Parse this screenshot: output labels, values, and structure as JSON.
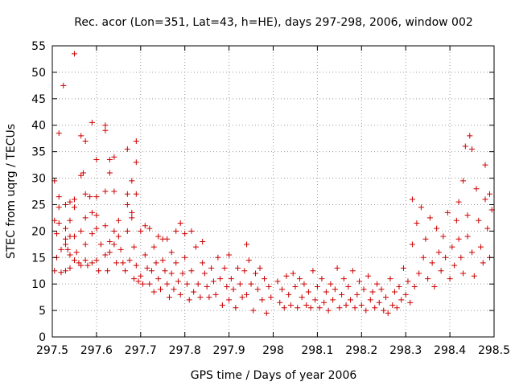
{
  "chart_data": {
    "type": "scatter",
    "title": "Rec. acor (Lon=351, Lat=43, h=HE), days 297-298, 2006, window 002",
    "xlabel": "GPS time / Days of year 2006",
    "ylabel": "STEC from uqrg / TECUs",
    "xlim": [
      297.5,
      298.5
    ],
    "ylim": [
      0,
      55
    ],
    "xticks": [
      297.5,
      297.6,
      297.7,
      297.8,
      297.9,
      298.0,
      298.1,
      298.2,
      298.3,
      298.4,
      298.5
    ],
    "xtick_labels": [
      "297.5",
      "297.6",
      "297.7",
      "297.8",
      "297.9",
      "298",
      "298.1",
      "298.2",
      "298.3",
      "298.4",
      "298.5"
    ],
    "yticks": [
      0,
      5,
      10,
      15,
      20,
      25,
      30,
      35,
      40,
      45,
      50,
      55
    ],
    "ytick_labels": [
      "0",
      "5",
      "10",
      "15",
      "20",
      "25",
      "30",
      "35",
      "40",
      "45",
      "50",
      "55"
    ],
    "grid": true,
    "marker": "plus",
    "color": "#cc0000",
    "series": [
      {
        "points": [
          [
            297.505,
            29.5
          ],
          [
            297.505,
            22
          ],
          [
            297.51,
            19.5
          ],
          [
            297.51,
            15
          ],
          [
            297.505,
            12.5
          ],
          [
            297.515,
            38.5
          ],
          [
            297.515,
            26.5
          ],
          [
            297.515,
            24.5
          ],
          [
            297.515,
            21.5
          ],
          [
            297.52,
            16.5
          ],
          [
            297.52,
            12.2
          ],
          [
            297.525,
            47.5
          ],
          [
            297.53,
            25
          ],
          [
            297.53,
            20.5
          ],
          [
            297.53,
            18.5
          ],
          [
            297.53,
            17.5
          ],
          [
            297.53,
            12.5
          ],
          [
            297.535,
            16.5
          ],
          [
            297.54,
            25.5
          ],
          [
            297.54,
            22
          ],
          [
            297.54,
            19
          ],
          [
            297.54,
            15.5
          ],
          [
            297.54,
            13
          ],
          [
            297.55,
            53.5
          ],
          [
            297.55,
            26
          ],
          [
            297.55,
            24.5
          ],
          [
            297.55,
            19
          ],
          [
            297.55,
            14.5
          ],
          [
            297.555,
            16
          ],
          [
            297.56,
            14
          ],
          [
            297.565,
            38
          ],
          [
            297.565,
            30.5
          ],
          [
            297.565,
            20
          ],
          [
            297.565,
            13.5
          ],
          [
            297.57,
            31
          ],
          [
            297.575,
            37
          ],
          [
            297.575,
            27
          ],
          [
            297.575,
            22.5
          ],
          [
            297.575,
            17.5
          ],
          [
            297.575,
            14.5
          ],
          [
            297.58,
            13.5
          ],
          [
            297.585,
            26.5
          ],
          [
            297.59,
            40.5
          ],
          [
            297.59,
            23.5
          ],
          [
            297.59,
            19.5
          ],
          [
            297.59,
            14
          ],
          [
            297.6,
            33.5
          ],
          [
            297.6,
            26.5
          ],
          [
            297.6,
            23
          ],
          [
            297.6,
            20.5
          ],
          [
            297.6,
            14.5
          ],
          [
            297.605,
            12.5
          ],
          [
            297.61,
            17.5
          ],
          [
            297.62,
            40
          ],
          [
            297.62,
            39
          ],
          [
            297.62,
            27.5
          ],
          [
            297.62,
            21
          ],
          [
            297.62,
            15.5
          ],
          [
            297.625,
            12.5
          ],
          [
            297.63,
            33.5
          ],
          [
            297.63,
            31
          ],
          [
            297.63,
            18
          ],
          [
            297.63,
            16
          ],
          [
            297.64,
            34
          ],
          [
            297.64,
            27.5
          ],
          [
            297.64,
            20
          ],
          [
            297.64,
            17.5
          ],
          [
            297.645,
            14
          ],
          [
            297.65,
            22
          ],
          [
            297.65,
            19
          ],
          [
            297.655,
            16.5
          ],
          [
            297.66,
            14
          ],
          [
            297.665,
            12.5
          ],
          [
            297.67,
            35.5
          ],
          [
            297.67,
            27
          ],
          [
            297.67,
            25
          ],
          [
            297.67,
            20
          ],
          [
            297.675,
            14.5
          ],
          [
            297.68,
            29.5
          ],
          [
            297.68,
            23.5
          ],
          [
            297.68,
            22.5
          ],
          [
            297.685,
            17
          ],
          [
            297.685,
            11
          ],
          [
            297.69,
            27
          ],
          [
            297.69,
            37
          ],
          [
            297.69,
            33
          ],
          [
            297.69,
            13.5
          ],
          [
            297.695,
            10.5
          ],
          [
            297.7,
            20
          ],
          [
            297.7,
            11.5
          ],
          [
            297.705,
            10
          ],
          [
            297.71,
            21
          ],
          [
            297.71,
            15.5
          ],
          [
            297.715,
            13
          ],
          [
            297.72,
            20.5
          ],
          [
            297.72,
            10
          ],
          [
            297.725,
            12.5
          ],
          [
            297.73,
            17
          ],
          [
            297.73,
            8.5
          ],
          [
            297.735,
            14
          ],
          [
            297.74,
            19
          ],
          [
            297.74,
            11
          ],
          [
            297.745,
            9
          ],
          [
            297.75,
            18.5
          ],
          [
            297.75,
            14.5
          ],
          [
            297.755,
            12.5
          ],
          [
            297.76,
            18.5
          ],
          [
            297.76,
            10
          ],
          [
            297.765,
            7.5
          ],
          [
            297.77,
            16
          ],
          [
            297.77,
            12
          ],
          [
            297.775,
            9
          ],
          [
            297.78,
            20
          ],
          [
            297.78,
            14
          ],
          [
            297.785,
            10.5
          ],
          [
            297.79,
            21.5
          ],
          [
            297.79,
            8
          ],
          [
            297.795,
            12
          ],
          [
            297.8,
            19.5
          ],
          [
            297.8,
            15
          ],
          [
            297.805,
            10
          ],
          [
            297.81,
            7
          ],
          [
            297.815,
            20
          ],
          [
            297.815,
            12.5
          ],
          [
            297.82,
            8.5
          ],
          [
            297.825,
            17
          ],
          [
            297.83,
            10
          ],
          [
            297.835,
            7.5
          ],
          [
            297.84,
            18
          ],
          [
            297.84,
            14
          ],
          [
            297.845,
            12
          ],
          [
            297.85,
            9.5
          ],
          [
            297.855,
            7.5
          ],
          [
            297.86,
            13
          ],
          [
            297.865,
            10.5
          ],
          [
            297.87,
            8
          ],
          [
            297.875,
            15
          ],
          [
            297.88,
            11
          ],
          [
            297.885,
            6
          ],
          [
            297.89,
            13
          ],
          [
            297.895,
            9.5
          ],
          [
            297.9,
            15.5
          ],
          [
            297.9,
            7
          ],
          [
            297.905,
            11
          ],
          [
            297.91,
            9
          ],
          [
            297.915,
            5.5
          ],
          [
            297.92,
            13
          ],
          [
            297.925,
            10
          ],
          [
            297.93,
            7.5
          ],
          [
            297.935,
            12.5
          ],
          [
            297.94,
            17.5
          ],
          [
            297.94,
            8
          ],
          [
            297.945,
            14.5
          ],
          [
            297.95,
            10
          ],
          [
            297.955,
            5
          ],
          [
            297.96,
            12
          ],
          [
            297.965,
            9
          ],
          [
            297.97,
            13
          ],
          [
            297.975,
            7
          ],
          [
            297.98,
            11
          ],
          [
            297.985,
            4.5
          ],
          [
            297.99,
            9.5
          ],
          [
            297.995,
            7.5
          ],
          [
            298.01,
            10.5
          ],
          [
            298.015,
            6.5
          ],
          [
            298.02,
            9
          ],
          [
            298.025,
            5.5
          ],
          [
            298.03,
            11.5
          ],
          [
            298.035,
            8
          ],
          [
            298.04,
            6
          ],
          [
            298.045,
            12
          ],
          [
            298.05,
            9.5
          ],
          [
            298.055,
            5.5
          ],
          [
            298.06,
            11
          ],
          [
            298.065,
            7.5
          ],
          [
            298.07,
            10
          ],
          [
            298.075,
            6
          ],
          [
            298.08,
            8.5
          ],
          [
            298.085,
            5.5
          ],
          [
            298.09,
            12.5
          ],
          [
            298.095,
            7
          ],
          [
            298.1,
            9.5
          ],
          [
            298.105,
            5.5
          ],
          [
            298.11,
            11
          ],
          [
            298.115,
            6.5
          ],
          [
            298.12,
            8.5
          ],
          [
            298.125,
            5
          ],
          [
            298.13,
            10
          ],
          [
            298.135,
            7
          ],
          [
            298.14,
            9
          ],
          [
            298.145,
            13
          ],
          [
            298.15,
            5.5
          ],
          [
            298.155,
            8
          ],
          [
            298.16,
            11
          ],
          [
            298.165,
            6
          ],
          [
            298.17,
            9.5
          ],
          [
            298.175,
            7
          ],
          [
            298.18,
            12.5
          ],
          [
            298.185,
            5.5
          ],
          [
            298.19,
            8
          ],
          [
            298.195,
            10.5
          ],
          [
            298.2,
            6
          ],
          [
            298.205,
            9
          ],
          [
            298.21,
            5
          ],
          [
            298.215,
            11.5
          ],
          [
            298.22,
            7
          ],
          [
            298.225,
            8.5
          ],
          [
            298.23,
            5.5
          ],
          [
            298.235,
            10
          ],
          [
            298.24,
            6.5
          ],
          [
            298.245,
            9
          ],
          [
            298.25,
            5
          ],
          [
            298.255,
            7.5
          ],
          [
            298.26,
            4.5
          ],
          [
            298.265,
            11
          ],
          [
            298.27,
            6
          ],
          [
            298.275,
            8.5
          ],
          [
            298.28,
            5.5
          ],
          [
            298.285,
            9.5
          ],
          [
            298.29,
            7
          ],
          [
            298.295,
            13
          ],
          [
            298.3,
            8
          ],
          [
            298.305,
            10.5
          ],
          [
            298.31,
            6.5
          ],
          [
            298.315,
            26
          ],
          [
            298.315,
            17.5
          ],
          [
            298.32,
            9.5
          ],
          [
            298.325,
            21.5
          ],
          [
            298.33,
            12
          ],
          [
            298.335,
            24.5
          ],
          [
            298.34,
            15
          ],
          [
            298.345,
            18.5
          ],
          [
            298.35,
            11
          ],
          [
            298.355,
            22.5
          ],
          [
            298.36,
            14
          ],
          [
            298.365,
            9.5
          ],
          [
            298.37,
            20.5
          ],
          [
            298.375,
            16
          ],
          [
            298.38,
            12.5
          ],
          [
            298.385,
            19
          ],
          [
            298.39,
            15
          ],
          [
            298.395,
            23.5
          ],
          [
            298.4,
            11
          ],
          [
            298.405,
            17
          ],
          [
            298.41,
            13.5
          ],
          [
            298.415,
            22
          ],
          [
            298.42,
            25.5
          ],
          [
            298.42,
            18.5
          ],
          [
            298.425,
            15
          ],
          [
            298.43,
            29.5
          ],
          [
            298.43,
            12
          ],
          [
            298.435,
            36
          ],
          [
            298.44,
            23
          ],
          [
            298.44,
            19
          ],
          [
            298.445,
            38
          ],
          [
            298.45,
            35.5
          ],
          [
            298.45,
            16
          ],
          [
            298.455,
            11.5
          ],
          [
            298.46,
            28
          ],
          [
            298.465,
            22
          ],
          [
            298.47,
            17
          ],
          [
            298.475,
            14
          ],
          [
            298.48,
            32.5
          ],
          [
            298.48,
            26
          ],
          [
            298.485,
            20.5
          ],
          [
            298.49,
            27
          ],
          [
            298.49,
            15
          ],
          [
            298.495,
            24
          ]
        ]
      }
    ]
  }
}
